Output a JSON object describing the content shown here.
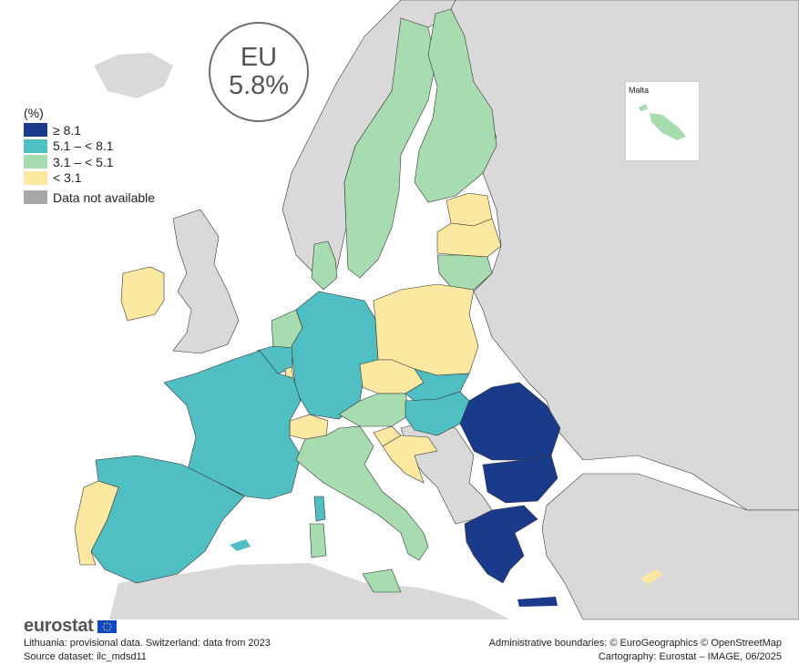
{
  "legend": {
    "unit": "(%)",
    "classes": [
      {
        "label": "≥ 8.1",
        "color": "#1a3a8c"
      },
      {
        "label": "5.1 – < 8.1",
        "color": "#4fbfc3"
      },
      {
        "label": "3.1 – < 5.1",
        "color": "#a6dcb0"
      },
      {
        "label": "< 3.1",
        "color": "#fce8a1"
      }
    ],
    "not_available": {
      "label": "Data not available",
      "color": "#a8a8a8"
    }
  },
  "eu": {
    "label": "EU",
    "value": "5.8%"
  },
  "inset": {
    "label": "Malta"
  },
  "brand": {
    "name": "eurostat"
  },
  "footnotes": {
    "note": "Lithuania: provisional data. Switzerland: data from 2023",
    "source": "Source dataset: ilc_mdsd11",
    "boundaries": "Administrative boundaries: © EuroGeographics © OpenStreetMap",
    "cartography": "Cartography: Eurostat – IMAGE, 06/2025"
  },
  "map_colors": {
    "sea": "#ffffff",
    "non_eu": "#d9d9d9",
    "border": "#333333"
  },
  "regions": [
    {
      "name": "Norway",
      "class": "non-eu"
    },
    {
      "name": "Sweden",
      "class": "3.1 – < 5.1"
    },
    {
      "name": "Finland",
      "class": "3.1 – < 5.1"
    },
    {
      "name": "Estonia",
      "class": "< 3.1"
    },
    {
      "name": "Latvia",
      "class": "< 3.1"
    },
    {
      "name": "Lithuania",
      "class": "3.1 – < 5.1"
    },
    {
      "name": "Denmark",
      "class": "3.1 – < 5.1"
    },
    {
      "name": "Ireland",
      "class": "< 3.1"
    },
    {
      "name": "United Kingdom",
      "class": "non-eu"
    },
    {
      "name": "Netherlands",
      "class": "3.1 – < 5.1"
    },
    {
      "name": "Belgium",
      "class": "5.1 – < 8.1"
    },
    {
      "name": "Luxembourg",
      "class": "< 3.1"
    },
    {
      "name": "Germany",
      "class": "5.1 – < 8.1"
    },
    {
      "name": "Poland",
      "class": "< 3.1"
    },
    {
      "name": "Czechia",
      "class": "< 3.1"
    },
    {
      "name": "Slovakia",
      "class": "5.1 – < 8.1"
    },
    {
      "name": "Austria",
      "class": "3.1 – < 5.1"
    },
    {
      "name": "Hungary",
      "class": "5.1 – < 8.1"
    },
    {
      "name": "Switzerland",
      "class": "< 3.1"
    },
    {
      "name": "France",
      "class": "5.1 – < 8.1"
    },
    {
      "name": "Spain",
      "class": "5.1 – < 8.1"
    },
    {
      "name": "Portugal",
      "class": "< 3.1"
    },
    {
      "name": "Italy",
      "class": "3.1 – < 5.1"
    },
    {
      "name": "Slovenia",
      "class": "< 3.1"
    },
    {
      "name": "Croatia",
      "class": "< 3.1"
    },
    {
      "name": "Romania",
      "class": "≥ 8.1"
    },
    {
      "name": "Bulgaria",
      "class": "≥ 8.1"
    },
    {
      "name": "Greece",
      "class": "≥ 8.1"
    },
    {
      "name": "Cyprus",
      "class": "< 3.1"
    },
    {
      "name": "Malta",
      "class": "3.1 – < 5.1"
    }
  ]
}
